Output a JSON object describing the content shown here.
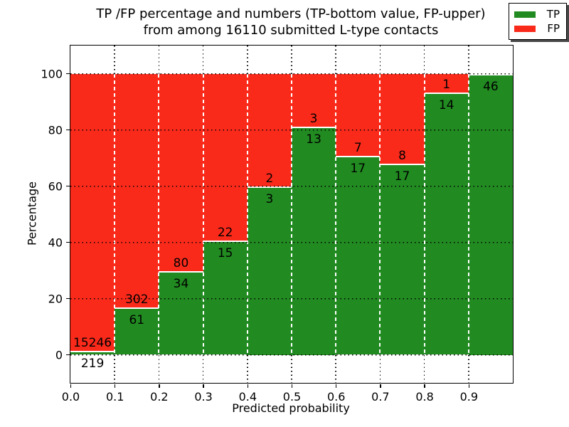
{
  "title": {
    "line1": "TP /FP percentage and numbers (TP-bottom value, FP-upper)",
    "line2": "from among 16110 submitted L-type contacts"
  },
  "axes": {
    "ylabel": "Percentage",
    "xlabel": "Predicted probability",
    "ytick_labels": [
      "0",
      "20",
      "40",
      "60",
      "80",
      "100"
    ],
    "ytick_values": [
      0,
      20,
      40,
      60,
      80,
      100
    ],
    "xtick_labels": [
      "0.0",
      "0.1",
      "0.2",
      "0.3",
      "0.4",
      "0.5",
      "0.6",
      "0.7",
      "0.8",
      "0.9"
    ],
    "xtick_values": [
      0,
      0.1,
      0.2,
      0.3,
      0.4,
      0.5,
      0.6,
      0.7,
      0.8,
      0.9
    ]
  },
  "legend": {
    "position": "upper right",
    "items": [
      {
        "label": "TP",
        "color": "#218a21"
      },
      {
        "label": "FP",
        "color": "#fa2a1b"
      }
    ]
  },
  "colors": {
    "tp_green": "#218a21",
    "fp_red": "#fa2a1b",
    "background": "#ffffff",
    "grid": "#000000",
    "bar_edge": "#ffffff"
  },
  "chart_data": {
    "type": "bar",
    "stacked": true,
    "normalized_to_percent": true,
    "total_contacts": 16110,
    "bin_edges": [
      0.0,
      0.1,
      0.2,
      0.3,
      0.4,
      0.5,
      0.6,
      0.7,
      0.8,
      0.9,
      1.0
    ],
    "categories": [
      "0.0-0.1",
      "0.1-0.2",
      "0.2-0.3",
      "0.3-0.4",
      "0.4-0.5",
      "0.5-0.6",
      "0.6-0.7",
      "0.7-0.8",
      "0.8-0.9",
      "0.9-1.0"
    ],
    "series": [
      {
        "name": "TP",
        "color": "#218a21",
        "counts": [
          219,
          61,
          34,
          15,
          3,
          13,
          17,
          17,
          14,
          46
        ]
      },
      {
        "name": "FP",
        "color": "#fa2a1b",
        "counts": [
          15246,
          302,
          80,
          22,
          2,
          3,
          7,
          8,
          1,
          0
        ]
      }
    ],
    "tp_value_labels": [
      "219",
      "61",
      "34",
      "15",
      "3",
      "13",
      "17",
      "17",
      "14",
      "46"
    ],
    "fp_value_labels": [
      "15246",
      "302",
      "80",
      "22",
      "2",
      "3",
      "7",
      "8",
      "1",
      ""
    ],
    "fp_label_note": "FP label of last bin is occluded by the legend box",
    "title": "TP /FP percentage and numbers (TP-bottom value, FP-upper) from among 16110 submitted L-type contacts",
    "xlabel": "Predicted probability",
    "ylabel": "Percentage",
    "ylim": [
      -10,
      110
    ],
    "xlim": [
      0.0,
      1.0
    ],
    "grid": "dotted",
    "legend_position": "upper right"
  }
}
